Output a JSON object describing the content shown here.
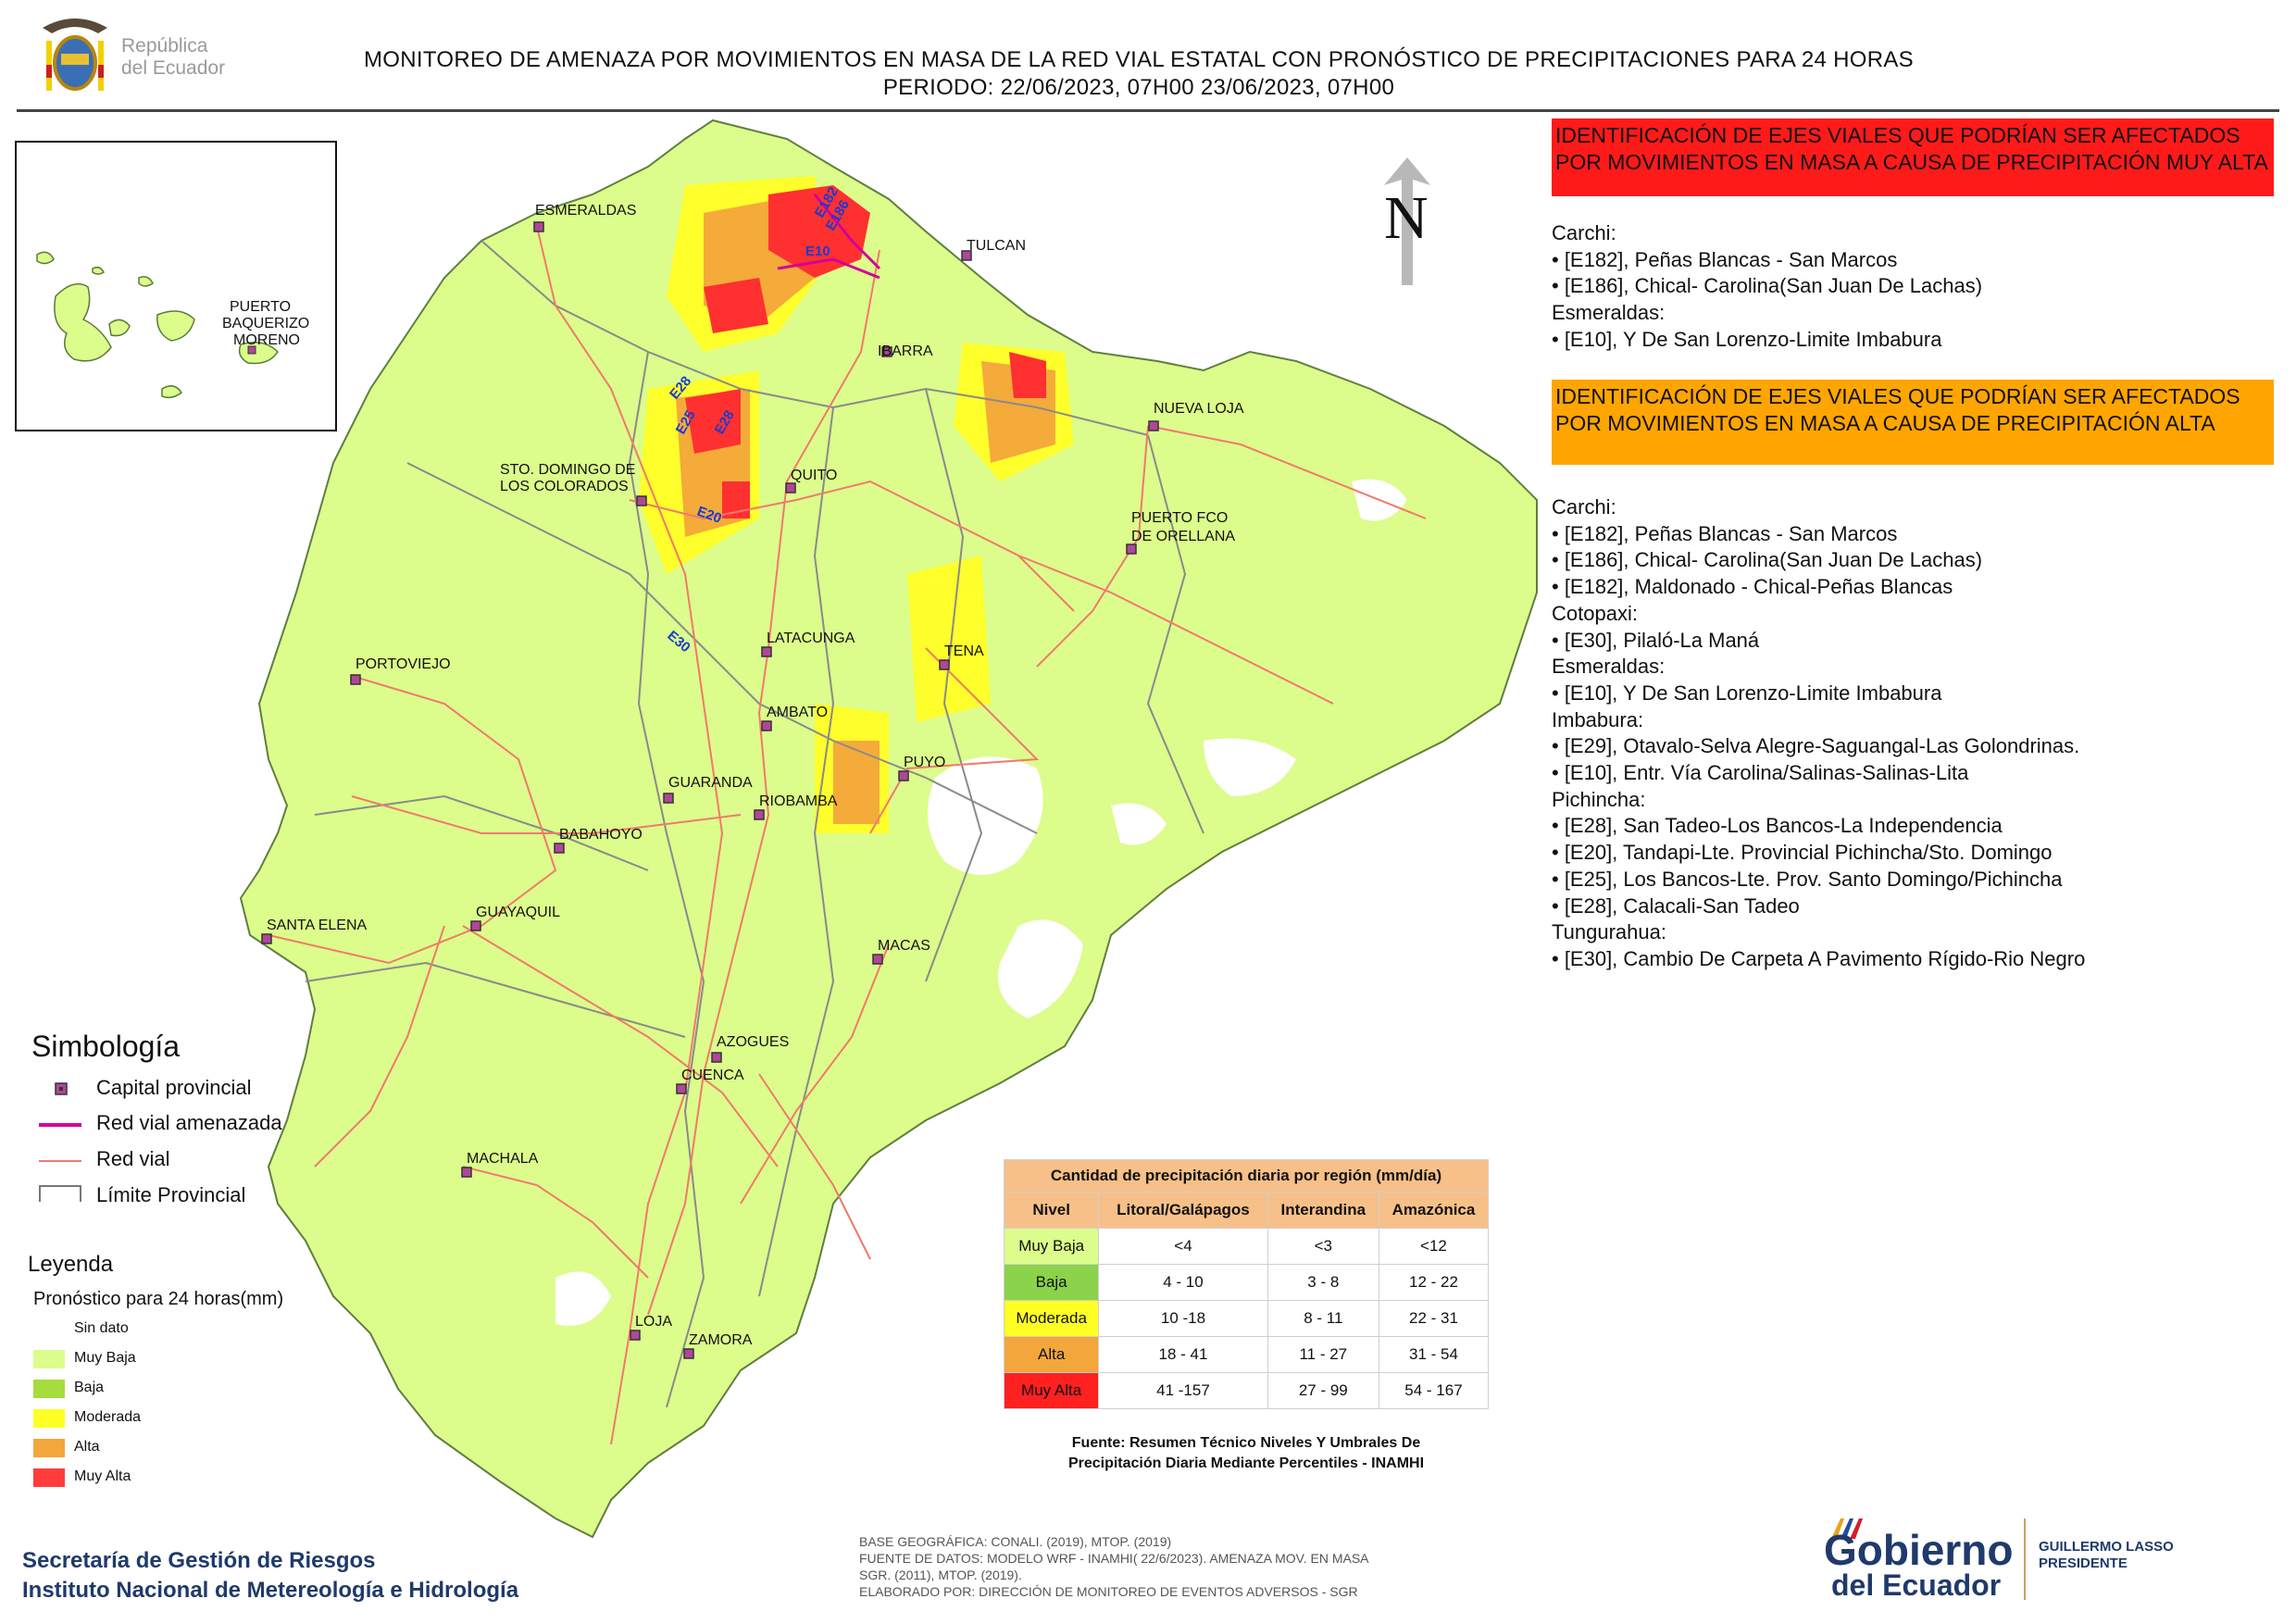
{
  "header": {
    "logo_text_line1": "República",
    "logo_text_line2": "del Ecuador",
    "title_line1": "MONITOREO DE AMENAZA POR MOVIMIENTOS EN MASA DE LA RED VIAL  ESTATAL  CON PRONÓSTICO  DE  PRECIPITACIONES PARA 24 HORAS",
    "title_line2": "PERIODO: 22/06/2023, 07H00 23/06/2023, 07H00"
  },
  "north_arrow": {
    "letter": "N"
  },
  "cities": [
    {
      "name": "ESMERALDAS"
    },
    {
      "name": "TULCAN"
    },
    {
      "name": "IBARRA"
    },
    {
      "name": "NUEVA LOJA"
    },
    {
      "name": "STO. DOMINGO DE"
    },
    {
      "name": "LOS COLORADOS"
    },
    {
      "name": "QUITO"
    },
    {
      "name": "PUERTO FCO"
    },
    {
      "name": "DE ORELLANA"
    },
    {
      "name": "PORTOVIEJO"
    },
    {
      "name": "LATACUNGA"
    },
    {
      "name": "TENA"
    },
    {
      "name": "AMBATO"
    },
    {
      "name": "PUYO"
    },
    {
      "name": "GUARANDA"
    },
    {
      "name": "RIOBAMBA"
    },
    {
      "name": "BABAHOYO"
    },
    {
      "name": "GUAYAQUIL"
    },
    {
      "name": "SANTA ELENA"
    },
    {
      "name": "MACAS"
    },
    {
      "name": "AZOGUES"
    },
    {
      "name": "CUENCA"
    },
    {
      "name": "MACHALA"
    },
    {
      "name": "LOJA"
    },
    {
      "name": "ZAMORA"
    },
    {
      "name": "PUERTO"
    },
    {
      "name": "BAQUERIZO"
    },
    {
      "name": "MORENO"
    }
  ],
  "road_labels": [
    "E182",
    "E186",
    "E10",
    "E28",
    "E25",
    "E28",
    "E20",
    "E30"
  ],
  "alert_panels": {
    "very_high": {
      "title": "IDENTIFICACIÓN DE EJES VIALES QUE PODRÍAN SER AFECTADOS POR MOVIMIENTOS EN MASA A CAUSA DE PRECIPITACIÓN MUY ALTA",
      "color": "#ff1a1a",
      "lines": [
        "Carchi:",
        "• [E182], Peñas Blancas - San Marcos",
        "• [E186], Chical- Carolina(San Juan De Lachas)",
        "Esmeraldas:",
        "• [E10], Y De San Lorenzo-Limite Imbabura"
      ]
    },
    "high": {
      "title": "IDENTIFICACIÓN DE EJES VIALES QUE PODRÍAN SER AFECTADOS POR MOVIMIENTOS EN MASA A CAUSA DE PRECIPITACIÓN  ALTA",
      "color": "#ffa500",
      "lines": [
        "Carchi:",
        "• [E182], Peñas Blancas - San Marcos",
        "• [E186], Chical- Carolina(San Juan De Lachas)",
        "• [E182], Maldonado - Chical-Peñas Blancas",
        "Cotopaxi:",
        "• [E30], Pilaló-La Maná",
        "Esmeraldas:",
        "• [E10], Y De San Lorenzo-Limite Imbabura",
        "Imbabura:",
        "• [E29], Otavalo-Selva Alegre-Saguangal-Las Golondrinas.",
        "• [E10], Entr. Vía Carolina/Salinas-Salinas-Lita",
        "Pichincha:",
        "• [E28], San Tadeo-Los Bancos-La Independencia",
        "• [E20], Tandapi-Lte. Provincial Pichincha/Sto. Domingo",
        "• [E25], Los Bancos-Lte. Prov. Santo Domingo/Pichincha",
        "• [E28], Calacali-San Tadeo",
        "Tungurahua:",
        "• [E30], Cambio De Carpeta A Pavimento Rígido-Rio Negro"
      ]
    }
  },
  "simbologia": {
    "title": "Simbología",
    "items": [
      {
        "label": "Capital provincial",
        "icon": "capital-marker",
        "color": "#b0469a"
      },
      {
        "label": "Red vial amenazada",
        "icon": "threatened-road-line",
        "color": "#d4009a"
      },
      {
        "label": "Red vial",
        "icon": "road-line",
        "color": "#f07a6a"
      },
      {
        "label": "Límite Provincial",
        "icon": "province-boundary",
        "color": "#888888"
      }
    ]
  },
  "leyenda": {
    "title": "Leyenda",
    "subtitle": "Pronóstico para 24 horas(mm)",
    "items": [
      {
        "label": "Sin dato",
        "color": "#ffffff"
      },
      {
        "label": "Muy Baja",
        "color": "#dcfc8c"
      },
      {
        "label": "Baja",
        "color": "#a6dc3c"
      },
      {
        "label": "Moderada",
        "color": "#ffff26"
      },
      {
        "label": "Alta",
        "color": "#f3a63b"
      },
      {
        "label": "Muy Alta",
        "color": "#ff3c3c"
      }
    ]
  },
  "precip_table": {
    "caption": "Cantidad de precipitación diaria por región (mm/día)",
    "headers": [
      "Nivel",
      "Litoral/Galápagos",
      "Interandina",
      "Amazónica"
    ],
    "rows": [
      {
        "nivel": "Muy Baja",
        "color": "#dcfc8c",
        "litoral": "<4",
        "interandina": "<3",
        "amazonica": "<12"
      },
      {
        "nivel": "Baja",
        "color": "#8bd34a",
        "litoral": "4 - 10",
        "interandina": "3 - 8",
        "amazonica": "12 - 22"
      },
      {
        "nivel": "Moderada",
        "color": "#ffff26",
        "litoral": "10 -18",
        "interandina": "8 - 11",
        "amazonica": "22 - 31"
      },
      {
        "nivel": "Alta",
        "color": "#f3a63b",
        "litoral": "18 - 41",
        "interandina": "11 - 27",
        "amazonica": "31 - 54"
      },
      {
        "nivel": "Muy Alta",
        "color": "#ff2020",
        "litoral": "41 -157",
        "interandina": "27 - 99",
        "amazonica": "54 - 167"
      }
    ],
    "source_line1": "Fuente: Resumen Técnico Niveles Y Umbrales De",
    "source_line2": "Precipitación Diaria Mediante Percentiles - INAMHI"
  },
  "footer": {
    "org_line1": "Secretaría de Gestión de Riesgos",
    "org_line2": "Instituto Nacional de Metereología e Hidrología",
    "credits": [
      "BASE GEOGRÁFICA: CONALI. (2019), MTOP. (2019)",
      "FUENTE DE DATOS: MODELO WRF - INAMHI( 22/6/2023).  AMENAZA MOV. EN MASA",
      "SGR. (2011), MTOP. (2019).",
      "ELABORADO POR: DIRECCIÓN DE MONITOREO DE EVENTOS ADVERSOS - SGR"
    ],
    "gob_logo_line1": "Gobierno",
    "gob_logo_line2": "del Ecuador",
    "president_line1": "GUILLERMO LASSO",
    "president_line2": "PRESIDENTE"
  }
}
